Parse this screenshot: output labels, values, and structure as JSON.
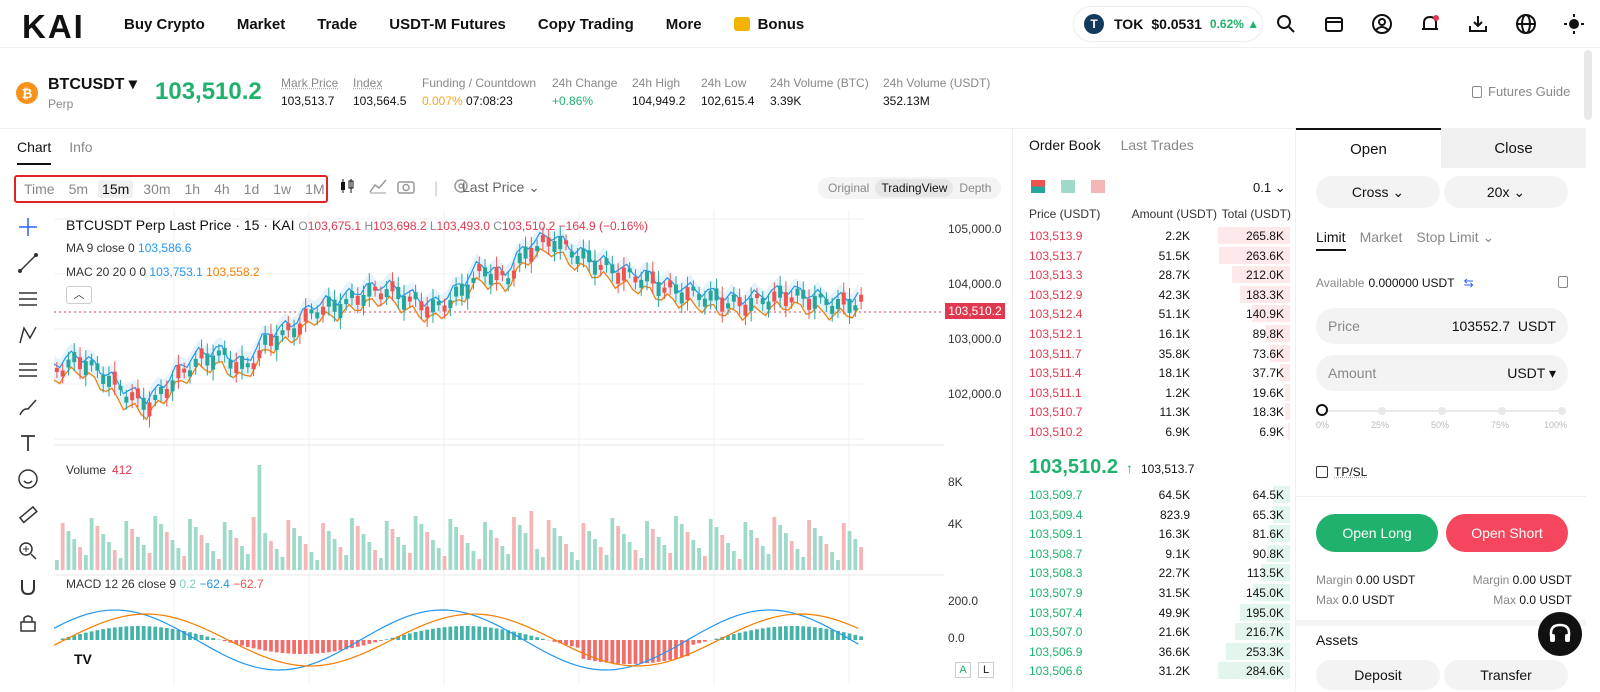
{
  "header": {
    "logo": "KAI",
    "nav": [
      "Buy Crypto",
      "Market",
      "Trade",
      "USDT-M Futures",
      "Copy Trading",
      "More"
    ],
    "bonus": "Bonus",
    "token": {
      "symbol": "TOK",
      "price": "$0.0531",
      "change": "0.62% ▲",
      "icon": "T"
    },
    "icons": [
      "search-icon",
      "wallet-icon",
      "account-icon",
      "bell-icon",
      "download-icon",
      "globe-icon",
      "theme-icon"
    ]
  },
  "ticker": {
    "symbol": "BTCUSDT",
    "type": "Perp",
    "price": "103,510.2",
    "mark_label": "Mark Price",
    "mark": "103,513.7",
    "index_label": "Index",
    "index": "103,564.5",
    "funding_label": "Funding / Countdown",
    "funding": "0.007%",
    "countdown": "07:08:23",
    "change_label": "24h Change",
    "change": "+0.86%",
    "high_label": "24h High",
    "high": "104,949.2",
    "low_label": "24h Low",
    "low": "102,615.4",
    "volbtc_label": "24h Volume (BTC)",
    "volbtc": "3.39K",
    "volusdt_label": "24h Volume (USDT)",
    "volusdt": "352.13M",
    "guide": "Futures Guide"
  },
  "chart": {
    "tabs": [
      "Chart",
      "Info"
    ],
    "timeframes": [
      "Time",
      "5m",
      "15m",
      "30m",
      "1h",
      "4h",
      "1d",
      "1w",
      "1M"
    ],
    "selected_tf": "15m",
    "price_type": "Last Price",
    "views": [
      "Original",
      "TradingView",
      "Depth"
    ],
    "title": "BTCUSDT Perp Last Price · 15 · KAI",
    "o": "103,675.1",
    "h": "103,698.2",
    "l": "103,493.0",
    "c": "103,510.2",
    "chg": "−164.9 (−0.16%)",
    "ma_label": "MA 9 close 0",
    "ma_val": "103,586.6",
    "mac_label": "MAC 20 20 0 0",
    "mac_up": "103,753.1",
    "mac_dn": "103,558.2",
    "y_ticks": [
      "105,000.0",
      "104,000.0",
      "103,000.0",
      "102,000.0"
    ],
    "price_tag": "103,510.2",
    "volume_label": "Volume",
    "volume_val": "412",
    "vol_ticks": [
      "8K",
      "4K"
    ],
    "macd_label": "MACD 12 26 close 9",
    "macd_h": "0.2",
    "macd_m": "−62.4",
    "macd_s": "−62.7",
    "macd_ticks": [
      "200.0",
      "0.0"
    ],
    "scale_a": "A",
    "scale_l": "L",
    "colors": {
      "up": "#26a69a",
      "down": "#ef5350",
      "ma": "#2196f3",
      "mac": "#f57c00"
    }
  },
  "orderbook": {
    "tabs": [
      "Order Book",
      "Last Trades"
    ],
    "step": "0.1",
    "headers": [
      "Price (USDT)",
      "Amount (USDT)",
      "Total (USDT)"
    ],
    "asks": [
      {
        "p": "103,513.9",
        "a": "2.2K",
        "t": "265.8K",
        "d": 1.0
      },
      {
        "p": "103,513.7",
        "a": "51.5K",
        "t": "263.6K",
        "d": 0.99
      },
      {
        "p": "103,513.3",
        "a": "28.7K",
        "t": "212.0K",
        "d": 0.8
      },
      {
        "p": "103,512.9",
        "a": "42.3K",
        "t": "183.3K",
        "d": 0.69
      },
      {
        "p": "103,512.4",
        "a": "51.1K",
        "t": "140.9K",
        "d": 0.53
      },
      {
        "p": "103,512.1",
        "a": "16.1K",
        "t": "89.8K",
        "d": 0.34
      },
      {
        "p": "103,511.7",
        "a": "35.8K",
        "t": "73.6K",
        "d": 0.28
      },
      {
        "p": "103,511.4",
        "a": "18.1K",
        "t": "37.7K",
        "d": 0.14
      },
      {
        "p": "103,511.1",
        "a": "1.2K",
        "t": "19.6K",
        "d": 0.07
      },
      {
        "p": "103,510.7",
        "a": "11.3K",
        "t": "18.3K",
        "d": 0.07
      },
      {
        "p": "103,510.2",
        "a": "6.9K",
        "t": "6.9K",
        "d": 0.03
      }
    ],
    "mid_price": "103,510.2",
    "mid_arrow": "↑",
    "mid_mark": "103,513.7",
    "bids": [
      {
        "p": "103,509.7",
        "a": "64.5K",
        "t": "64.5K",
        "d": 0.23
      },
      {
        "p": "103,509.4",
        "a": "823.9",
        "t": "65.3K",
        "d": 0.23
      },
      {
        "p": "103,509.1",
        "a": "16.3K",
        "t": "81.6K",
        "d": 0.29
      },
      {
        "p": "103,508.7",
        "a": "9.1K",
        "t": "90.8K",
        "d": 0.32
      },
      {
        "p": "103,508.3",
        "a": "22.7K",
        "t": "113.5K",
        "d": 0.4
      },
      {
        "p": "103,507.9",
        "a": "31.5K",
        "t": "145.0K",
        "d": 0.51
      },
      {
        "p": "103,507.4",
        "a": "49.9K",
        "t": "195.0K",
        "d": 0.69
      },
      {
        "p": "103,507.0",
        "a": "21.6K",
        "t": "216.7K",
        "d": 0.76
      },
      {
        "p": "103,506.9",
        "a": "36.6K",
        "t": "253.3K",
        "d": 0.89
      },
      {
        "p": "103,506.6",
        "a": "31.2K",
        "t": "284.6K",
        "d": 1.0
      }
    ]
  },
  "trade": {
    "open": "Open",
    "close": "Close",
    "margin_mode": "Cross ⌄",
    "leverage": "20x ⌄",
    "order_types": [
      "Limit",
      "Market",
      "Stop Limit ⌄"
    ],
    "available_label": "Available",
    "available": "0.000000 USDT",
    "price_label": "Price",
    "price_value": "103552.7",
    "price_unit": "USDT",
    "amount_label": "Amount",
    "amount_unit": "USDT ▾",
    "percents": [
      "0%",
      "25%",
      "50%",
      "75%",
      "100%"
    ],
    "tpsl": "TP/SL",
    "open_long": "Open Long",
    "open_short": "Open Short",
    "margin_label": "Margin",
    "margin_long": "0.00 USDT",
    "margin_short": "0.00 USDT",
    "max_label": "Max",
    "max_long": "0.0 USDT",
    "max_short": "0.0 USDT",
    "assets": "Assets",
    "deposit": "Deposit",
    "transfer": "Transfer"
  }
}
